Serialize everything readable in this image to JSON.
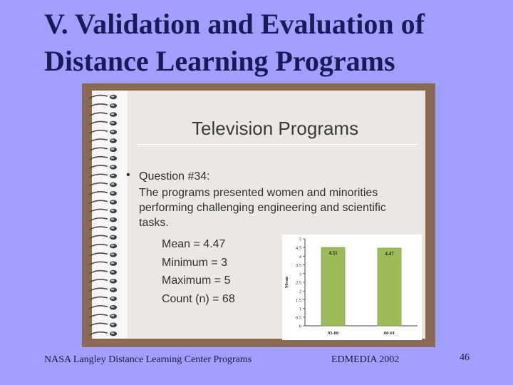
{
  "title": {
    "line1": "V. Validation and Evaluation of",
    "line2": "Distance Learning Programs"
  },
  "slide": {
    "heading": "Television Programs",
    "bullet": "•",
    "question": "Question #34:",
    "statement_lines": [
      "The programs presented women and minorities",
      "performing challenging engineering and scientific",
      "tasks."
    ],
    "stats": [
      "Mean = 4.47",
      "Minimum = 3",
      "Maximum = 5",
      "Count (n) = 68"
    ]
  },
  "chart_data": {
    "type": "bar",
    "categories": [
      "93-00",
      "00-01"
    ],
    "values": [
      4.51,
      4.47
    ],
    "data_labels": [
      "4.51",
      "4.47"
    ],
    "ylabel": "Mean",
    "xlabel": "",
    "ylim": [
      0,
      5
    ],
    "yticks": [
      "0",
      "0.5",
      "1",
      "1.5",
      "2",
      "2.5",
      "3",
      "3.5",
      "4",
      "4.5",
      "5"
    ],
    "bar_color": "#9bbb59",
    "grid": false
  },
  "footer": {
    "left": "NASA Langley Distance Learning Center Programs",
    "center": "EDMEDIA 2002",
    "page": "46"
  }
}
